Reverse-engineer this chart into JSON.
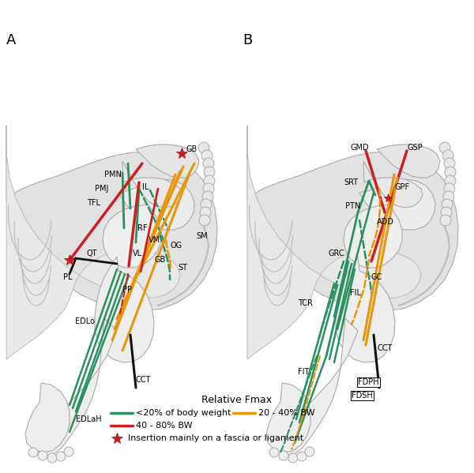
{
  "fig_w": 6.0,
  "fig_h": 5.99,
  "dpi": 100,
  "bg": "#ffffff",
  "body_fill": "#e0e0e0",
  "body_edge": "#bbbbbb",
  "bone_fill": "#f0f0f0",
  "bone_edge": "#aaaaaa",
  "GREEN": "#2a9060",
  "ORANGE": "#e8960a",
  "RED": "#cc2020",
  "BLACK": "#111111",
  "legend_title": "Relative Fmax",
  "leg1_label": "<20% of body weight",
  "leg2_label": "20 - 40% BW",
  "leg3_label": "40 - 80% BW",
  "leg4_label": "Insertion mainly on a fascia or ligament"
}
